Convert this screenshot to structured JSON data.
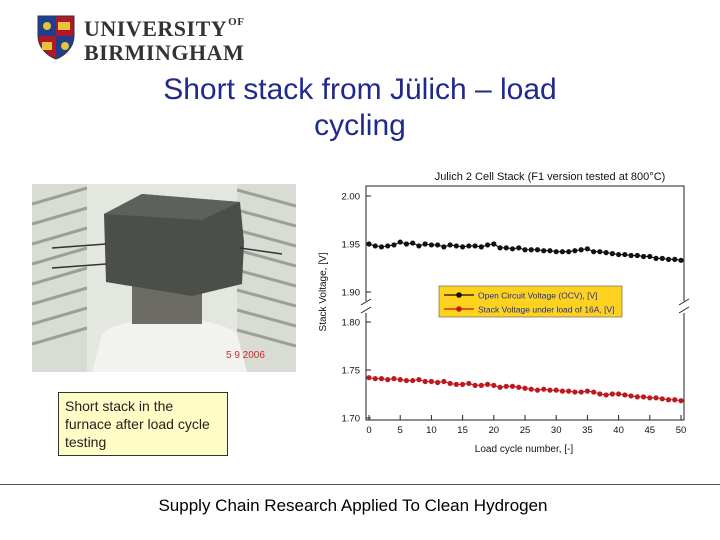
{
  "logo": {
    "line1": "UNIVERSITY",
    "of": "OF",
    "line2": "BIRMINGHAM"
  },
  "title": {
    "line1": "Short stack from Jülich – load",
    "line2": "cycling"
  },
  "photo": {
    "date_stamp": "5  9 2006"
  },
  "caption": {
    "text": "Short stack in the furnace after load cycle testing"
  },
  "footer": {
    "text": "Supply Chain Research Applied To Clean Hydrogen"
  },
  "colors": {
    "title": "#1f2a8a",
    "ocv_series": "#111111",
    "load_series": "#c0181f",
    "legend_bg": "#ffd21f",
    "caption_bg": "#fffcc6"
  },
  "chart_data": {
    "type": "line",
    "title": "Julich 2 Cell Stack (F1 version tested at 800°C)",
    "xlabel": "Load cycle number, [-]",
    "ylabel": "Stack Voltage, [V]",
    "xlim": [
      0,
      50
    ],
    "ylim": [
      1.7,
      2.0
    ],
    "xticks": [
      "0",
      "5",
      "10",
      "15",
      "20",
      "25",
      "30",
      "35",
      "40",
      "45",
      "50"
    ],
    "yticks": [
      "2.00",
      "1.95",
      "1.90",
      "1.80",
      "1.75",
      "1.70"
    ],
    "axis_break": "between 1.90 and 1.80",
    "legend_placement": "center",
    "series": [
      {
        "name": "Open Circuit Voltage (OCV), [V]",
        "x": [
          0,
          1,
          2,
          3,
          4,
          5,
          6,
          7,
          8,
          9,
          10,
          11,
          12,
          13,
          14,
          15,
          16,
          17,
          18,
          19,
          20,
          21,
          22,
          23,
          24,
          25,
          26,
          27,
          28,
          29,
          30,
          31,
          32,
          33,
          34,
          35,
          36,
          37,
          38,
          39,
          40,
          41,
          42,
          43,
          44,
          45,
          46,
          47,
          48,
          49,
          50
        ],
        "values": [
          1.95,
          1.948,
          1.947,
          1.948,
          1.949,
          1.952,
          1.95,
          1.951,
          1.948,
          1.95,
          1.949,
          1.949,
          1.947,
          1.949,
          1.948,
          1.947,
          1.948,
          1.948,
          1.947,
          1.949,
          1.95,
          1.946,
          1.946,
          1.945,
          1.946,
          1.944,
          1.944,
          1.944,
          1.943,
          1.943,
          1.942,
          1.942,
          1.942,
          1.943,
          1.944,
          1.945,
          1.942,
          1.942,
          1.941,
          1.94,
          1.939,
          1.939,
          1.938,
          1.938,
          1.937,
          1.937,
          1.935,
          1.935,
          1.934,
          1.934,
          1.933
        ]
      },
      {
        "name": "Stack Voltage under load of 16A, [V]",
        "x": [
          0,
          1,
          2,
          3,
          4,
          5,
          6,
          7,
          8,
          9,
          10,
          11,
          12,
          13,
          14,
          15,
          16,
          17,
          18,
          19,
          20,
          21,
          22,
          23,
          24,
          25,
          26,
          27,
          28,
          29,
          30,
          31,
          32,
          33,
          34,
          35,
          36,
          37,
          38,
          39,
          40,
          41,
          42,
          43,
          44,
          45,
          46,
          47,
          48,
          49,
          50
        ],
        "values": [
          1.742,
          1.741,
          1.741,
          1.74,
          1.741,
          1.74,
          1.739,
          1.739,
          1.74,
          1.738,
          1.738,
          1.737,
          1.738,
          1.736,
          1.735,
          1.735,
          1.736,
          1.734,
          1.734,
          1.735,
          1.734,
          1.732,
          1.733,
          1.733,
          1.732,
          1.731,
          1.73,
          1.729,
          1.73,
          1.729,
          1.729,
          1.728,
          1.728,
          1.727,
          1.727,
          1.728,
          1.727,
          1.725,
          1.724,
          1.725,
          1.725,
          1.724,
          1.723,
          1.722,
          1.722,
          1.721,
          1.721,
          1.72,
          1.719,
          1.719,
          1.718
        ]
      }
    ]
  }
}
